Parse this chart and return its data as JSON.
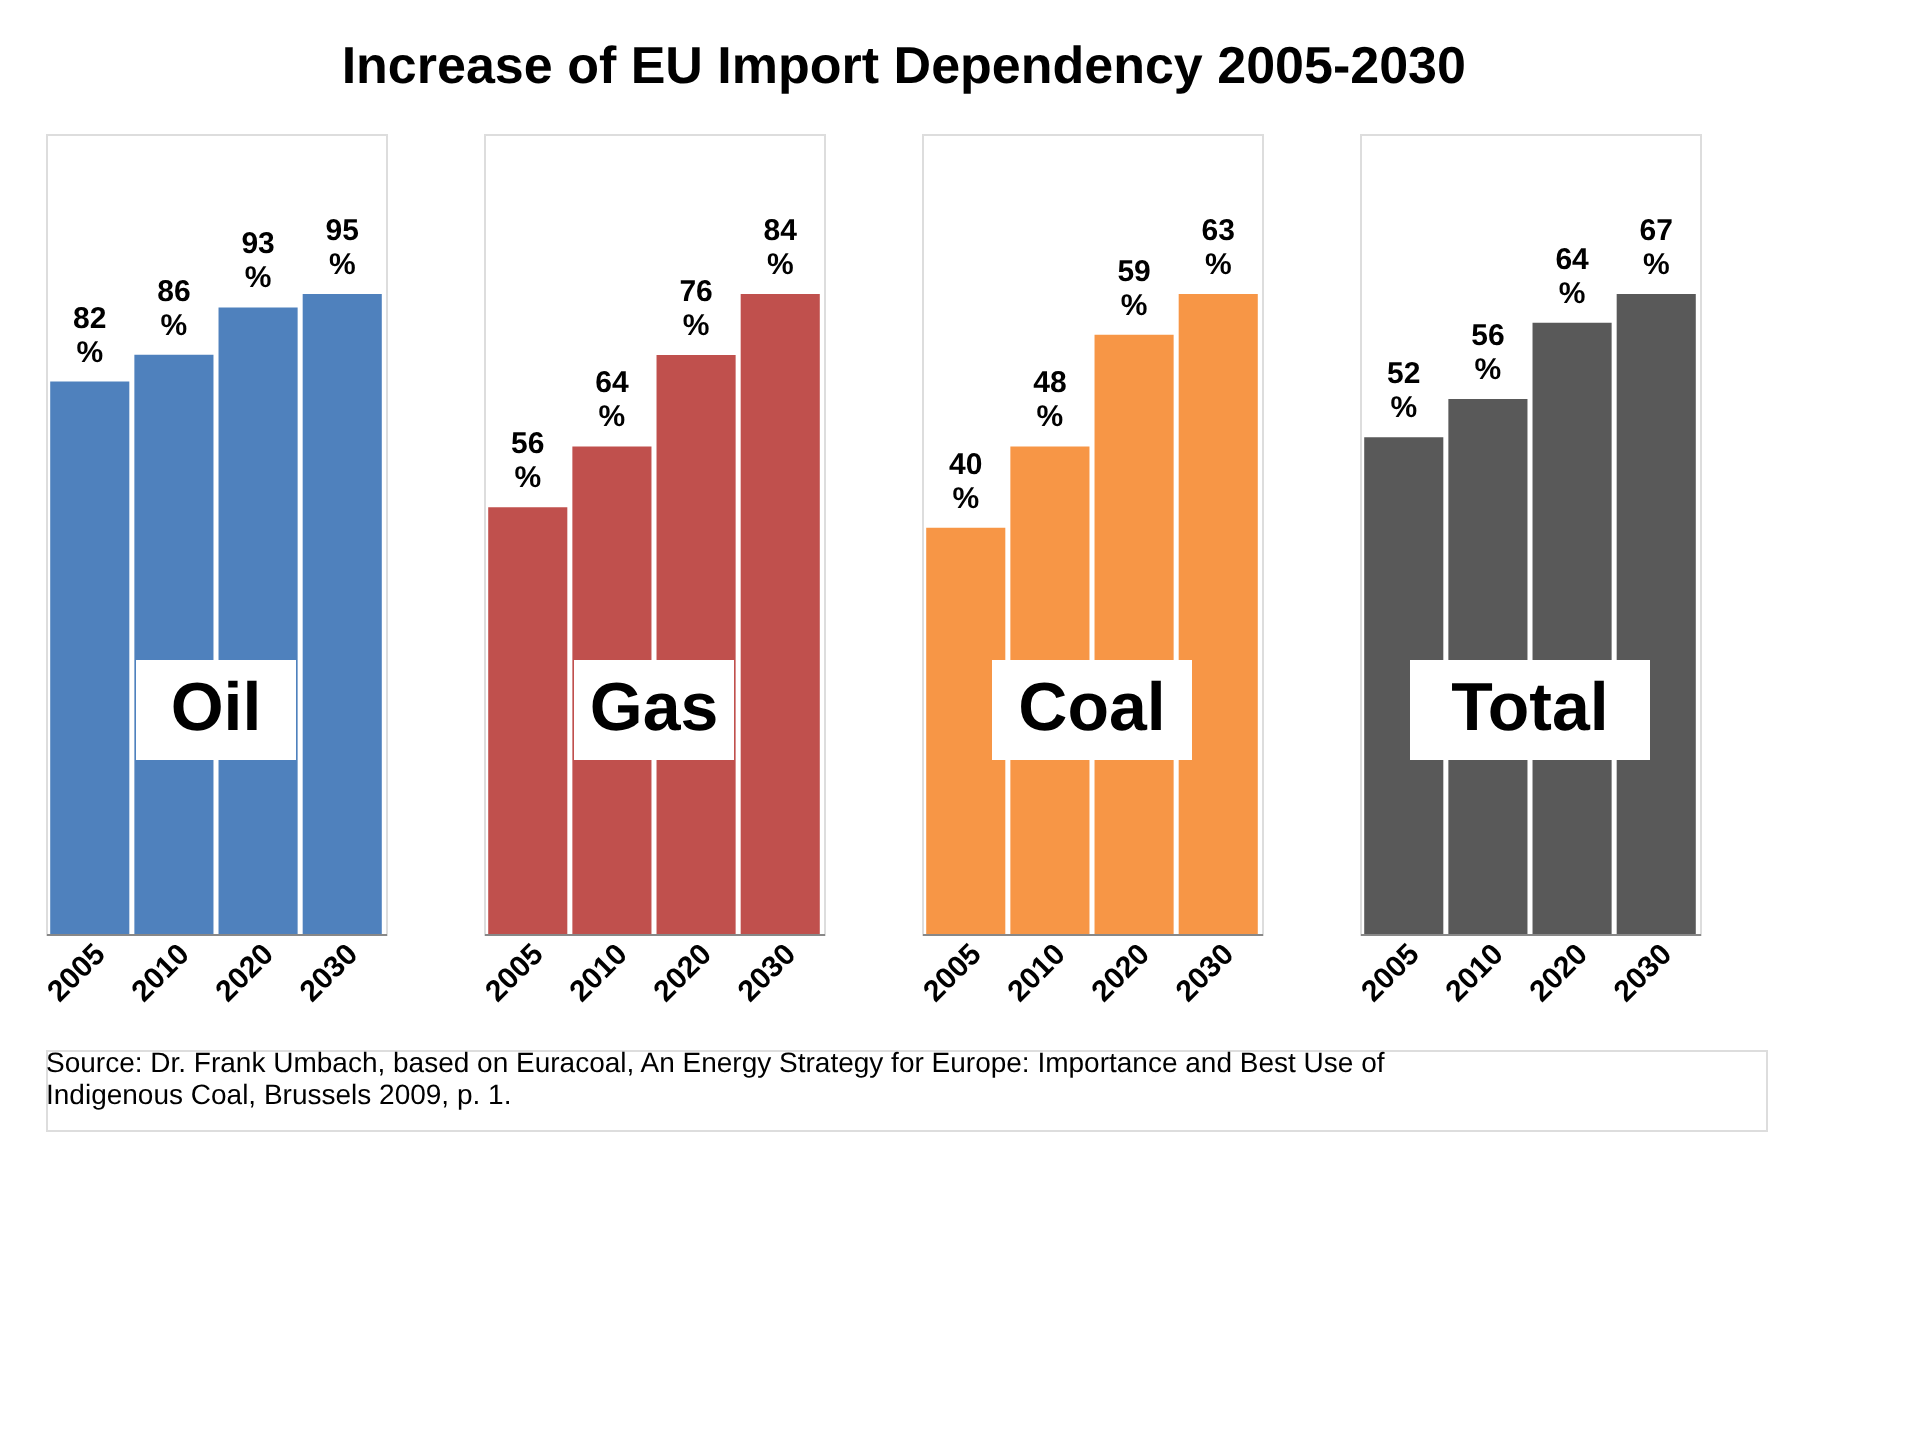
{
  "chart_data": [
    {
      "type": "bar",
      "title": "Increase of EU Import Dependency 2005-2030",
      "categories": [
        "2005",
        "2010",
        "2020",
        "2030"
      ],
      "values": [
        82,
        86,
        93,
        95
      ],
      "color": "#4f81bd",
      "value_labels": [
        "82\n%",
        "86\n%",
        "93\n%",
        "95\n%"
      ],
      "annotations": [
        "Oil"
      ]
    },
    {
      "type": "bar",
      "categories": [
        "2005",
        "2010",
        "2020",
        "2030"
      ],
      "values": [
        56,
        64,
        76,
        84
      ],
      "color": "#c0504d",
      "value_labels": [
        "56\n%",
        "64\n%",
        "76\n%",
        "84\n%"
      ],
      "annotations": [
        "Gas"
      ]
    },
    {
      "type": "bar",
      "categories": [
        "2005",
        "2010",
        "2020",
        "2030"
      ],
      "values": [
        40,
        48,
        59,
        63
      ],
      "color": "#f79646",
      "value_labels": [
        "40\n%",
        "48\n%",
        "59\n%",
        "63\n%"
      ],
      "annotations": [
        "Coal"
      ]
    },
    {
      "type": "bar",
      "categories": [
        "2005",
        "2010",
        "2020",
        "2030"
      ],
      "values": [
        52,
        56,
        64,
        67
      ],
      "color": "#595959",
      "value_labels": [
        "52\n%",
        "56\n%",
        "64\n%",
        "67\n%"
      ],
      "annotations": [
        "Total",
        "Source: Dr. Frank Umbach, based on Euracoal, An Energy Strategy for Europe: Importance and Best Use of\nIndigenous Coal, Brussels 2009, p. 1."
      ]
    }
  ]
}
